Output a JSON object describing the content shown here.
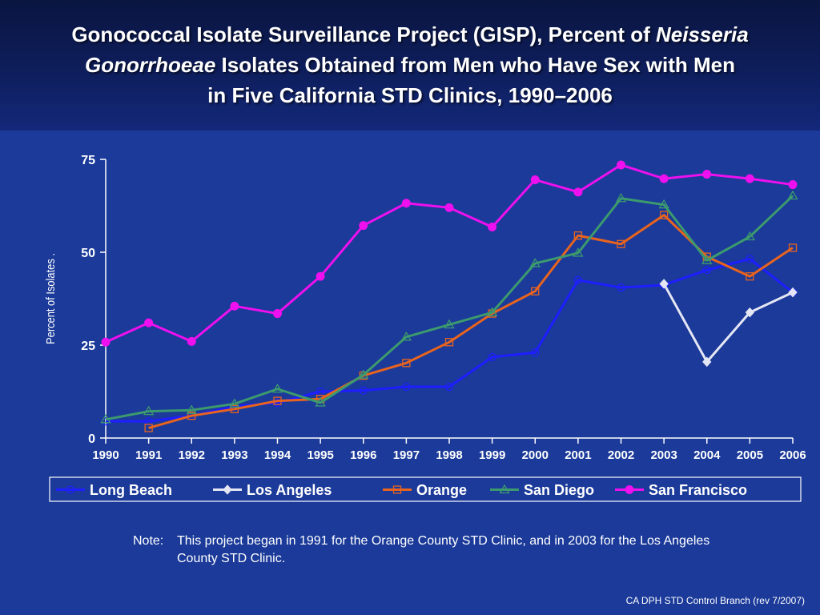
{
  "title": {
    "line1_a": "Gonococcal Isolate Surveillance Project (GISP), Percent of ",
    "line1_b": "Neisseria",
    "line2_a": "Gonorrhoeae",
    "line2_b": " Isolates Obtained from Men who Have Sex with Men",
    "line3": "in Five California STD Clinics, 1990–2006"
  },
  "note": {
    "label": "Note:",
    "text": "This project began in 1991 for the Orange County STD Clinic, and in 2003 for the Los Angeles County STD Clinic."
  },
  "footer": "CA DPH STD Control Branch (rev 7/2007)",
  "colors": {
    "background": "#1B3A99",
    "title_band": "#0E1E5C",
    "axis": "#FFFFFF",
    "text": "#FFFFFF"
  },
  "chart_data": {
    "type": "line",
    "title": "",
    "xlabel": "",
    "ylabel": "Percent of Isolates .",
    "x": [
      1990,
      1991,
      1992,
      1993,
      1994,
      1995,
      1996,
      1997,
      1998,
      1999,
      2000,
      2001,
      2002,
      2003,
      2004,
      2005,
      2006
    ],
    "ylim": [
      0,
      75
    ],
    "yticks": [
      0,
      25,
      50,
      75
    ],
    "grid": false,
    "legend": "bottom",
    "series": [
      {
        "name": "Long Beach",
        "color": "#1E1EFF",
        "marker": "circle-open",
        "values": [
          4.5,
          4.5,
          6,
          8.5,
          9.5,
          12.5,
          12.8,
          13.8,
          13.8,
          21.8,
          23,
          42.5,
          40.5,
          41.2,
          45.2,
          48.2,
          39.2
        ]
      },
      {
        "name": "Los Angeles",
        "color": "#E4E6F4",
        "marker": "diamond-filled",
        "values": [
          null,
          null,
          null,
          null,
          null,
          null,
          null,
          null,
          null,
          null,
          null,
          null,
          null,
          41.5,
          20.5,
          33.8,
          39.2
        ]
      },
      {
        "name": "Orange",
        "color": "#E8641E",
        "marker": "square-open",
        "values": [
          null,
          2.7,
          6,
          7.8,
          10,
          10.5,
          16.8,
          20.2,
          25.8,
          33.5,
          39.5,
          54.5,
          52.2,
          60,
          48.8,
          43.5,
          51.2
        ]
      },
      {
        "name": "San Diego",
        "color": "#3C9A6E",
        "marker": "triangle-open",
        "values": [
          5,
          7.2,
          7.5,
          9.2,
          13.2,
          9.5,
          17,
          27.2,
          30.5,
          33.8,
          47,
          49.8,
          64.5,
          62.8,
          47.8,
          54.2,
          65.2
        ]
      },
      {
        "name": "San Francisco",
        "color": "#EE10EE",
        "marker": "circle-filled",
        "values": [
          25.8,
          31,
          26,
          35.5,
          33.5,
          43.5,
          57.2,
          63.2,
          62,
          56.8,
          69.5,
          66.2,
          73.5,
          69.8,
          71,
          69.8,
          68.2
        ]
      }
    ]
  }
}
